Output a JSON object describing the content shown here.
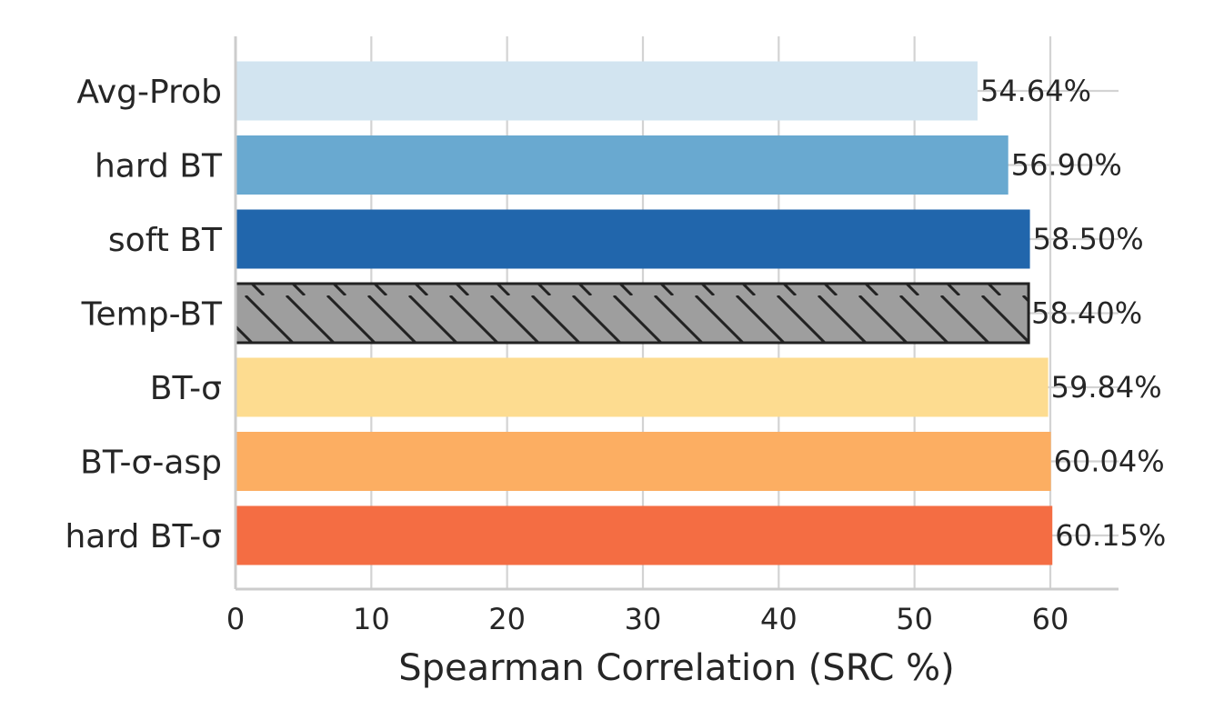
{
  "chart_data": {
    "type": "bar",
    "orientation": "horizontal",
    "categories": [
      "Avg-Prob",
      "hard BT",
      "soft BT",
      "Temp-BT",
      "BT-σ",
      "BT-σ-asp",
      "hard BT-σ"
    ],
    "values": [
      54.64,
      56.9,
      58.5,
      58.4,
      59.84,
      60.04,
      60.15
    ],
    "value_labels": [
      "54.64%",
      "56.90%",
      "58.50%",
      "58.40%",
      "59.84%",
      "60.04%",
      "60.15%"
    ],
    "colors": [
      "#d2e4f0",
      "#69a9d0",
      "#2166ac",
      "#9e9e9e",
      "#fddc90",
      "#fcae62",
      "#f46d43"
    ],
    "hatched": [
      false,
      false,
      false,
      true,
      false,
      false,
      false
    ],
    "xlabel": "Spearman Correlation (SRC %)",
    "ylabel": "",
    "title": "",
    "xlim": [
      0,
      65
    ],
    "xticks": [
      0,
      10,
      20,
      30,
      40,
      50,
      60
    ],
    "grid": true
  }
}
